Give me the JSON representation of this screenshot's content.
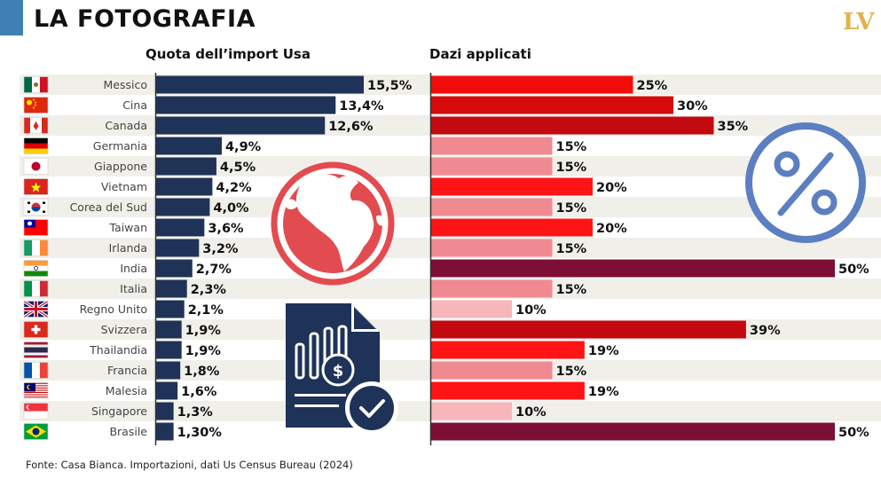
{
  "header": {
    "title": "LA FOTOGRAFIA",
    "logo_l": "L",
    "logo_v": "V"
  },
  "source": "Fonte: Casa Bianca. Importazioni, dati Us Census Bureau (2024)",
  "colors": {
    "import_bar": "#1f3257",
    "duty_10": "#f7b6bb",
    "duty_15": "#f08a91",
    "duty_19": "#fe1414",
    "duty_20": "#fe1414",
    "duty_25": "#f20d0d",
    "duty_30": "#d60a0a",
    "duty_35": "#c20a10",
    "duty_39": "#c40810",
    "duty_50": "#7d0f37",
    "globe": "#e24b4f",
    "doc": "#1f3257",
    "percent": "#5b7fc0"
  },
  "icons": [
    "globe-icon",
    "invoice-document-icon",
    "percent-icon"
  ],
  "chart_data": [
    {
      "type": "bar",
      "orientation": "horizontal",
      "title": "Quota dell’import Usa",
      "categories": [
        "Messico",
        "Cina",
        "Canada",
        "Germania",
        "Giappone",
        "Vietnam",
        "Corea del Sud",
        "Taiwan",
        "Irlanda",
        "India",
        "Italia",
        "Regno Unito",
        "Svizzera",
        "Thailandia",
        "Francia",
        "Malesia",
        "Singapore",
        "Brasile"
      ],
      "values": [
        15.5,
        13.4,
        12.6,
        4.9,
        4.5,
        4.2,
        4.0,
        3.6,
        3.2,
        2.7,
        2.3,
        2.1,
        1.9,
        1.9,
        1.8,
        1.6,
        1.3,
        1.3
      ],
      "labels": [
        "15,5%",
        "13,4%",
        "12,6%",
        "4,9%",
        "4,5%",
        "4,2%",
        "4,0%",
        "3,6%",
        "3,2%",
        "2,7%",
        "2,3%",
        "2,1%",
        "1,9%",
        "1,9%",
        "1,8%",
        "1,6%",
        "1,3%",
        "1,30%"
      ],
      "flags": [
        "mexico",
        "china",
        "canada",
        "germany",
        "japan",
        "vietnam",
        "south-korea",
        "taiwan",
        "ireland",
        "india",
        "italy",
        "united-kingdom",
        "switzerland",
        "thailand",
        "france",
        "malaysia",
        "singapore",
        "brazil"
      ]
    },
    {
      "type": "bar",
      "orientation": "horizontal",
      "title": "Dazi applicati",
      "categories": [
        "Messico",
        "Cina",
        "Canada",
        "Germania",
        "Giappone",
        "Vietnam",
        "Corea del Sud",
        "Taiwan",
        "Irlanda",
        "India",
        "Italia",
        "Regno Unito",
        "Svizzera",
        "Thailandia",
        "Francia",
        "Malesia",
        "Singapore",
        "Brasile"
      ],
      "values": [
        25,
        30,
        35,
        15,
        15,
        20,
        15,
        20,
        15,
        50,
        15,
        10,
        39,
        19,
        15,
        19,
        10,
        50
      ],
      "labels": [
        "25%",
        "30%",
        "35%",
        "15%",
        "15%",
        "20%",
        "15%",
        "20%",
        "15%",
        "50%",
        "15%",
        "10%",
        "39%",
        "19%",
        "15%",
        "19%",
        "10%",
        "50%"
      ]
    }
  ]
}
